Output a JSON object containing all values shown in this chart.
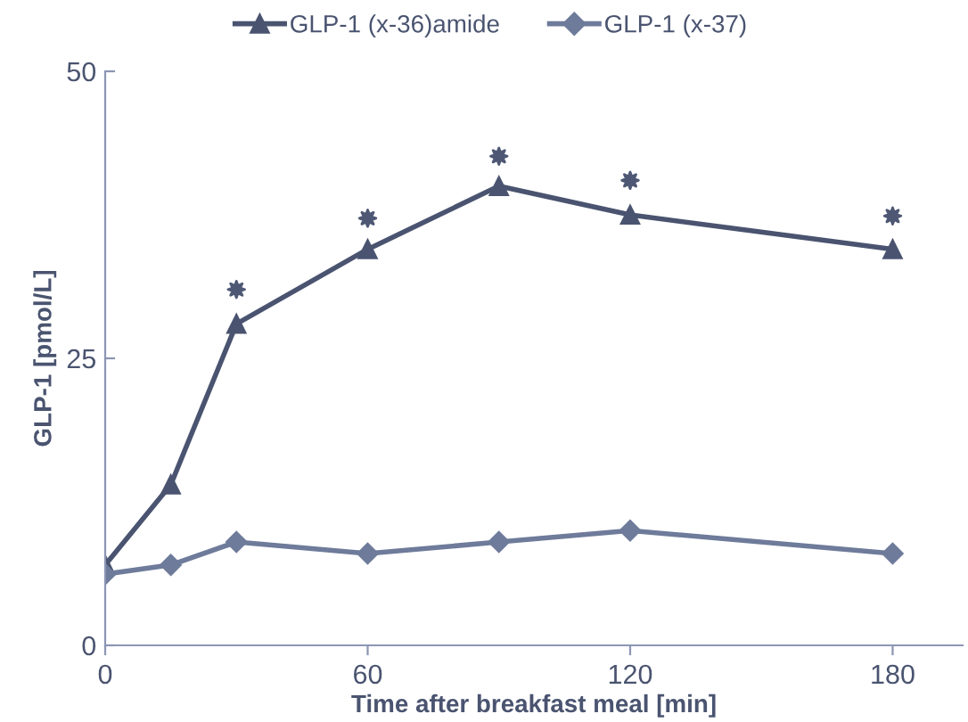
{
  "chart_data": {
    "type": "line",
    "xlabel": "Time after breakfast meal [min]",
    "ylabel": "GLP-1 [pmol/L]",
    "series": [
      {
        "name": "GLP-1 (x-36)amide",
        "color": "#4a5470",
        "marker": "triangle",
        "x": [
          0,
          15,
          30,
          60,
          90,
          120,
          180
        ],
        "values": [
          7,
          14,
          28,
          34.5,
          40,
          37.5,
          34.5
        ]
      },
      {
        "name": "GLP-1 (x-37)",
        "color": "#6e7b9a",
        "marker": "diamond",
        "x": [
          0,
          15,
          30,
          60,
          90,
          120,
          180
        ],
        "values": [
          6.2,
          7,
          9,
          8,
          9,
          10,
          8
        ]
      },
      {
        "type": "scatter",
        "color": "#4e5874",
        "marker": "star",
        "x": [
          30,
          60,
          90,
          120,
          180
        ],
        "values": [
          31,
          37.2,
          42.6,
          40.5,
          37.4
        ]
      }
    ],
    "xlim": [
      0,
      196
    ],
    "ylim": [
      0,
      50
    ],
    "xticks": [
      0,
      60,
      120,
      180
    ],
    "yticks": [
      0,
      25,
      50
    ],
    "grid": false,
    "legend": "top"
  }
}
